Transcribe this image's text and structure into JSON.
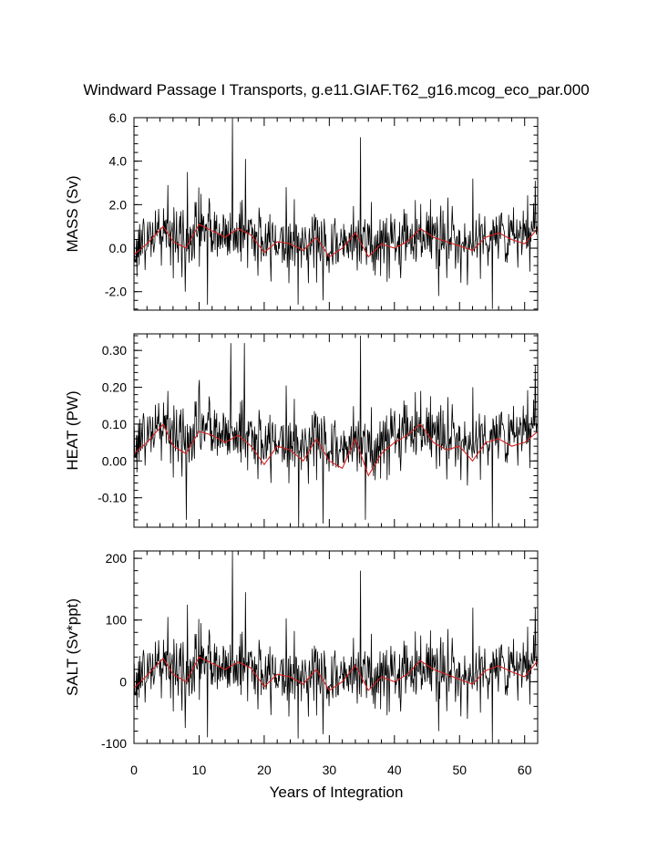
{
  "chart_data": {
    "type": "line",
    "title": "Windward Passage I Transports, g.e11.GIAF.T62_g16.mcog_eco_par.000",
    "xlabel": "Years of Integration",
    "xlim": [
      0,
      62
    ],
    "xticks": [
      0,
      10,
      20,
      30,
      40,
      50,
      60
    ],
    "xtick_labels": [
      "0",
      "10",
      "20",
      "30",
      "40",
      "50",
      "60"
    ],
    "grid": false,
    "colors": {
      "raw": "#000000",
      "smoothed": "#d62020",
      "frame": "#000000"
    },
    "panels": [
      {
        "ylabel": "MASS (Sv)",
        "ylim": [
          -2.85,
          6.0
        ],
        "yticks": [
          -2.0,
          0.0,
          2.0,
          4.0,
          6.0
        ],
        "ytick_labels": [
          "-2.0",
          "0.0",
          "2.0",
          "4.0",
          "6.0"
        ],
        "baseline": 0.25,
        "noise": 0.75,
        "smooth_amp": 0.35,
        "peaks": [
          [
            5.2,
            2.9
          ],
          [
            8.2,
            3.5
          ],
          [
            10.3,
            2.5
          ],
          [
            15.1,
            6.0
          ],
          [
            17.1,
            4.1
          ],
          [
            34.8,
            5.1
          ],
          [
            52.0,
            3.2
          ],
          [
            61.6,
            3.1
          ]
        ],
        "troughs": [
          [
            7.9,
            -2.0
          ],
          [
            11.3,
            -2.6
          ],
          [
            25.2,
            -2.6
          ],
          [
            29.0,
            -2.4
          ],
          [
            46.8,
            -2.2
          ],
          [
            55.0,
            -2.8
          ]
        ],
        "smooth_anchors": [
          [
            0,
            -0.3
          ],
          [
            2,
            0.2
          ],
          [
            4.5,
            1.0
          ],
          [
            6,
            0.3
          ],
          [
            8,
            0.0
          ],
          [
            10,
            1.1
          ],
          [
            12,
            0.8
          ],
          [
            14,
            0.5
          ],
          [
            16,
            0.9
          ],
          [
            18,
            0.6
          ],
          [
            20,
            -0.2
          ],
          [
            22,
            0.3
          ],
          [
            24,
            0.2
          ],
          [
            26,
            -0.1
          ],
          [
            28,
            0.5
          ],
          [
            30,
            -0.4
          ],
          [
            32,
            0.0
          ],
          [
            34,
            0.7
          ],
          [
            36,
            -0.4
          ],
          [
            38,
            0.2
          ],
          [
            40,
            0.0
          ],
          [
            42,
            0.3
          ],
          [
            44,
            0.9
          ],
          [
            46,
            0.5
          ],
          [
            48,
            0.3
          ],
          [
            50,
            0.1
          ],
          [
            52,
            -0.1
          ],
          [
            54,
            0.5
          ],
          [
            56,
            0.7
          ],
          [
            58,
            0.4
          ],
          [
            60,
            0.2
          ],
          [
            62,
            0.9
          ]
        ]
      },
      {
        "ylabel": "HEAT (PW)",
        "ylim": [
          -0.18,
          0.345
        ],
        "yticks": [
          -0.1,
          0.0,
          0.1,
          0.2,
          0.3
        ],
        "ytick_labels": [
          "-0.10",
          "0.00",
          "0.10",
          "0.20",
          "0.30"
        ],
        "baseline": 0.04,
        "noise": 0.045,
        "smooth_amp": 0.03,
        "peaks": [
          [
            5.2,
            0.19
          ],
          [
            10.0,
            0.22
          ],
          [
            14.9,
            0.32
          ],
          [
            17.0,
            0.32
          ],
          [
            34.8,
            0.34
          ],
          [
            44.0,
            0.19
          ],
          [
            52.0,
            0.2
          ],
          [
            61.6,
            0.26
          ]
        ],
        "troughs": [
          [
            8.0,
            -0.16
          ],
          [
            25.3,
            -0.18
          ],
          [
            29.0,
            -0.17
          ],
          [
            35.5,
            -0.16
          ],
          [
            55.0,
            -0.18
          ]
        ],
        "smooth_anchors": [
          [
            0,
            0.02
          ],
          [
            2,
            0.05
          ],
          [
            4.5,
            0.1
          ],
          [
            6,
            0.04
          ],
          [
            8,
            0.02
          ],
          [
            10,
            0.08
          ],
          [
            12,
            0.07
          ],
          [
            14,
            0.05
          ],
          [
            16,
            0.07
          ],
          [
            18,
            0.04
          ],
          [
            20,
            -0.01
          ],
          [
            22,
            0.04
          ],
          [
            24,
            0.03
          ],
          [
            26,
            0.0
          ],
          [
            28,
            0.06
          ],
          [
            30,
            0.0
          ],
          [
            32,
            -0.02
          ],
          [
            34,
            0.06
          ],
          [
            36,
            -0.04
          ],
          [
            38,
            0.02
          ],
          [
            40,
            0.05
          ],
          [
            42,
            0.07
          ],
          [
            44,
            0.1
          ],
          [
            46,
            0.05
          ],
          [
            48,
            0.03
          ],
          [
            50,
            0.04
          ],
          [
            52,
            0.0
          ],
          [
            54,
            0.05
          ],
          [
            56,
            0.06
          ],
          [
            58,
            0.04
          ],
          [
            60,
            0.05
          ],
          [
            62,
            0.08
          ]
        ]
      },
      {
        "ylabel": "SALT (Sv*ppt)",
        "ylim": [
          -100,
          212
        ],
        "yticks": [
          -100,
          0,
          100,
          200
        ],
        "ytick_labels": [
          "-100",
          "0",
          "100",
          "200"
        ],
        "baseline": 10,
        "noise": 27,
        "smooth_amp": 12,
        "peaks": [
          [
            5.2,
            105
          ],
          [
            8.2,
            125
          ],
          [
            10.3,
            95
          ],
          [
            15.1,
            212
          ],
          [
            17.1,
            145
          ],
          [
            34.8,
            180
          ],
          [
            52.0,
            120
          ],
          [
            61.6,
            120
          ]
        ],
        "troughs": [
          [
            7.9,
            -75
          ],
          [
            11.3,
            -90
          ],
          [
            25.2,
            -92
          ],
          [
            29.0,
            -85
          ],
          [
            46.8,
            -80
          ],
          [
            55.0,
            -100
          ]
        ],
        "smooth_anchors": [
          [
            0,
            -10
          ],
          [
            2,
            10
          ],
          [
            4.5,
            38
          ],
          [
            6,
            12
          ],
          [
            8,
            0
          ],
          [
            10,
            40
          ],
          [
            12,
            30
          ],
          [
            14,
            20
          ],
          [
            16,
            32
          ],
          [
            18,
            22
          ],
          [
            20,
            -8
          ],
          [
            22,
            12
          ],
          [
            24,
            8
          ],
          [
            26,
            -4
          ],
          [
            28,
            20
          ],
          [
            30,
            -14
          ],
          [
            32,
            0
          ],
          [
            34,
            26
          ],
          [
            36,
            -14
          ],
          [
            38,
            8
          ],
          [
            40,
            0
          ],
          [
            42,
            12
          ],
          [
            44,
            34
          ],
          [
            46,
            20
          ],
          [
            48,
            12
          ],
          [
            50,
            4
          ],
          [
            52,
            -4
          ],
          [
            54,
            18
          ],
          [
            56,
            26
          ],
          [
            58,
            16
          ],
          [
            60,
            8
          ],
          [
            62,
            34
          ]
        ]
      }
    ]
  }
}
